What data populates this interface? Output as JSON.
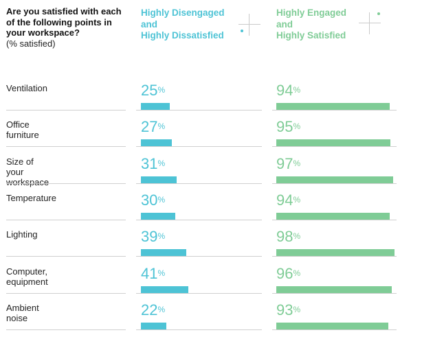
{
  "question": {
    "text": "Are you satisfied with each of the following points in your workspace?",
    "unit": "(% satisfied)"
  },
  "legend": {
    "disengaged": "Highly Disengaged\nand\nHighly Dissatisfied",
    "engaged": "Highly Engaged\nand\nHighly Satisfied"
  },
  "colors": {
    "disengaged": "#4dc3d5",
    "engaged": "#7fcc96"
  },
  "chart_data": {
    "type": "bar",
    "title": "Are you satisfied with each of the following points in your workspace?",
    "ylabel": "(% satisfied)",
    "categories": [
      "Ventilation",
      "Office furniture",
      "Size of your workspace",
      "Temperature",
      "Lighting",
      "Computer, equipment",
      "Ambient noise"
    ],
    "series": [
      {
        "name": "Highly Disengaged and Highly Dissatisfied",
        "values": [
          25,
          27,
          31,
          30,
          39,
          41,
          22
        ]
      },
      {
        "name": "Highly Engaged and Highly Satisfied",
        "values": [
          94,
          95,
          97,
          94,
          98,
          96,
          93
        ]
      }
    ],
    "ylim": [
      0,
      100
    ],
    "unit_symbol": "%"
  }
}
